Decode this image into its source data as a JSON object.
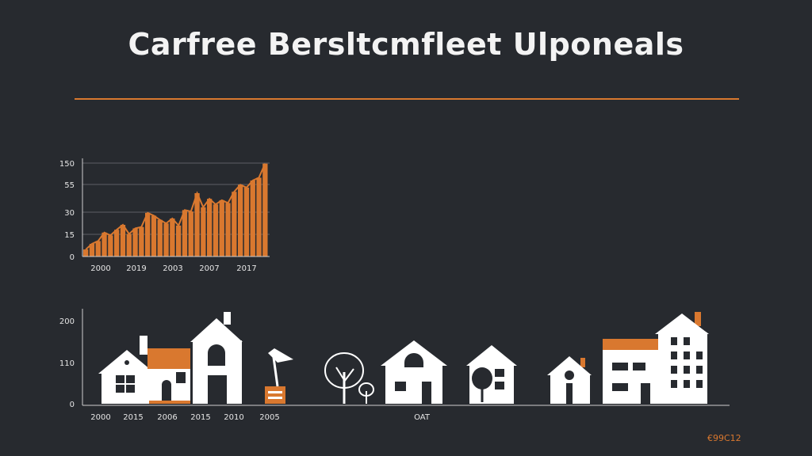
{
  "title": "Carfree Bersltcmfleet Ulponeals",
  "footer_code": "€99C12",
  "colors": {
    "background": "#272a2f",
    "accent": "#d9782f",
    "house": "#ffffff",
    "text": "#e6e6e6"
  },
  "chart_data": [
    {
      "type": "area",
      "title": "",
      "xlabel": "",
      "ylabel": "",
      "y_tick_labels": [
        "0",
        "15",
        "30",
        "55",
        "150"
      ],
      "x_tick_labels": [
        "2000",
        "2019",
        "2003",
        "2007",
        "2017"
      ],
      "grid": true,
      "series": [
        {
          "values": [
            10,
            18,
            22,
            34,
            30,
            38,
            45,
            32,
            40,
            42,
            62,
            58,
            52,
            47,
            54,
            44,
            66,
            64,
            90,
            70,
            82,
            74,
            80,
            76,
            92,
            102,
            98,
            108,
            112,
            132
          ]
        }
      ]
    },
    {
      "type": "illustration",
      "y_tick_labels": [
        "0",
        "110",
        "200"
      ],
      "x_tick_labels": [
        "2000",
        "2015",
        "2006",
        "2015",
        "2010",
        "2005",
        "OAT"
      ],
      "icons": [
        "house-icon",
        "house-icon",
        "tall-house-icon",
        "weathervane-icon",
        "tree-icon",
        "small-tree-icon",
        "house-icon",
        "house-with-tree-icon",
        "small-house-icon",
        "apartment-building-icon",
        "apartment-building-icon"
      ]
    }
  ]
}
